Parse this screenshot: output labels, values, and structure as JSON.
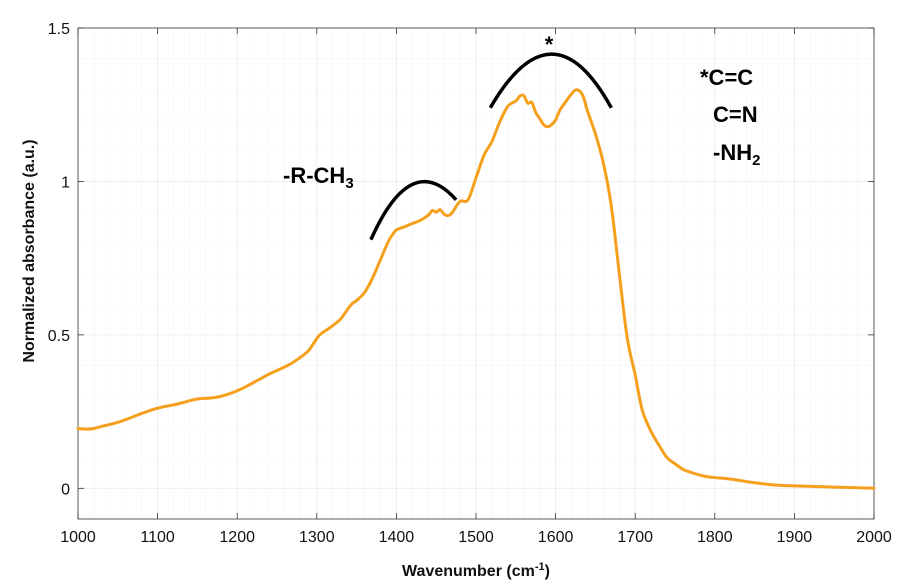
{
  "chart_data": {
    "type": "line",
    "xlabel": "Wavenumber (cm",
    "xlabel_sup": "-1",
    "xlabel_end": ")",
    "ylabel": "Normalized absorbance (a.u.)",
    "xlim": [
      1000,
      2000
    ],
    "ylim": [
      -0.1,
      1.5
    ],
    "xticks": [
      1000,
      1100,
      1200,
      1300,
      1400,
      1500,
      1600,
      1700,
      1800,
      1900,
      2000
    ],
    "yticks": [
      0,
      0.5,
      1,
      1.5
    ],
    "ytick_labels": [
      "0",
      "0.5",
      "1",
      "1.5"
    ],
    "grid": true,
    "colors": {
      "series": "#F5A01D",
      "annotation": "#000000",
      "axes": "#333333",
      "grid": "#ebebeb"
    },
    "series": [
      {
        "x": [
          1000,
          1010,
          1020,
          1030,
          1040,
          1050,
          1060,
          1070,
          1080,
          1090,
          1100,
          1110,
          1120,
          1130,
          1140,
          1150,
          1160,
          1170,
          1180,
          1190,
          1200,
          1210,
          1220,
          1230,
          1240,
          1250,
          1260,
          1270,
          1280,
          1290,
          1300,
          1305,
          1310,
          1320,
          1330,
          1340,
          1345,
          1350,
          1360,
          1370,
          1380,
          1390,
          1395,
          1400,
          1410,
          1420,
          1430,
          1440,
          1445,
          1450,
          1455,
          1460,
          1465,
          1470,
          1480,
          1490,
          1500,
          1510,
          1520,
          1530,
          1540,
          1550,
          1555,
          1560,
          1565,
          1570,
          1575,
          1580,
          1585,
          1590,
          1595,
          1600,
          1605,
          1610,
          1620,
          1625,
          1630,
          1635,
          1640,
          1650,
          1660,
          1670,
          1680,
          1690,
          1700,
          1705,
          1710,
          1720,
          1730,
          1740,
          1750,
          1760,
          1770,
          1780,
          1790,
          1800,
          1820,
          1840,
          1860,
          1880,
          1900,
          1950,
          2000
        ],
        "y": [
          0.195,
          0.193,
          0.195,
          0.202,
          0.208,
          0.215,
          0.224,
          0.234,
          0.244,
          0.253,
          0.261,
          0.267,
          0.272,
          0.278,
          0.285,
          0.291,
          0.293,
          0.295,
          0.3,
          0.308,
          0.318,
          0.33,
          0.344,
          0.358,
          0.372,
          0.384,
          0.396,
          0.41,
          0.428,
          0.45,
          0.488,
          0.503,
          0.512,
          0.53,
          0.552,
          0.588,
          0.603,
          0.612,
          0.638,
          0.685,
          0.745,
          0.805,
          0.826,
          0.842,
          0.852,
          0.863,
          0.873,
          0.89,
          0.905,
          0.9,
          0.908,
          0.893,
          0.889,
          0.898,
          0.935,
          0.94,
          1.012,
          1.085,
          1.13,
          1.195,
          1.245,
          1.262,
          1.278,
          1.28,
          1.255,
          1.258,
          1.225,
          1.205,
          1.185,
          1.178,
          1.185,
          1.2,
          1.23,
          1.25,
          1.285,
          1.298,
          1.295,
          1.275,
          1.23,
          1.155,
          1.06,
          0.92,
          0.7,
          0.49,
          0.37,
          0.3,
          0.245,
          0.185,
          0.14,
          0.1,
          0.08,
          0.062,
          0.052,
          0.044,
          0.038,
          0.035,
          0.03,
          0.022,
          0.015,
          0.01,
          0.008,
          0.004,
          0.0
        ]
      }
    ],
    "annotations": {
      "asterisk": "*",
      "methyl_prefix": "-R-CH",
      "methyl_sub": "3",
      "group_1": "*C=C",
      "group_2": "C=N",
      "group_3_prefix": "-NH",
      "group_3_sub": "2"
    },
    "brackets": [
      {
        "from": 1368,
        "to": 1475,
        "peak_x": 1420,
        "peak_y": 0.99,
        "end_y_left": 0.81,
        "end_y_right": 0.94
      },
      {
        "from": 1518,
        "to": 1670,
        "peak_x": 1595,
        "peak_y": 1.415,
        "end_y_left": 1.24,
        "end_y_right": 1.24
      }
    ]
  }
}
